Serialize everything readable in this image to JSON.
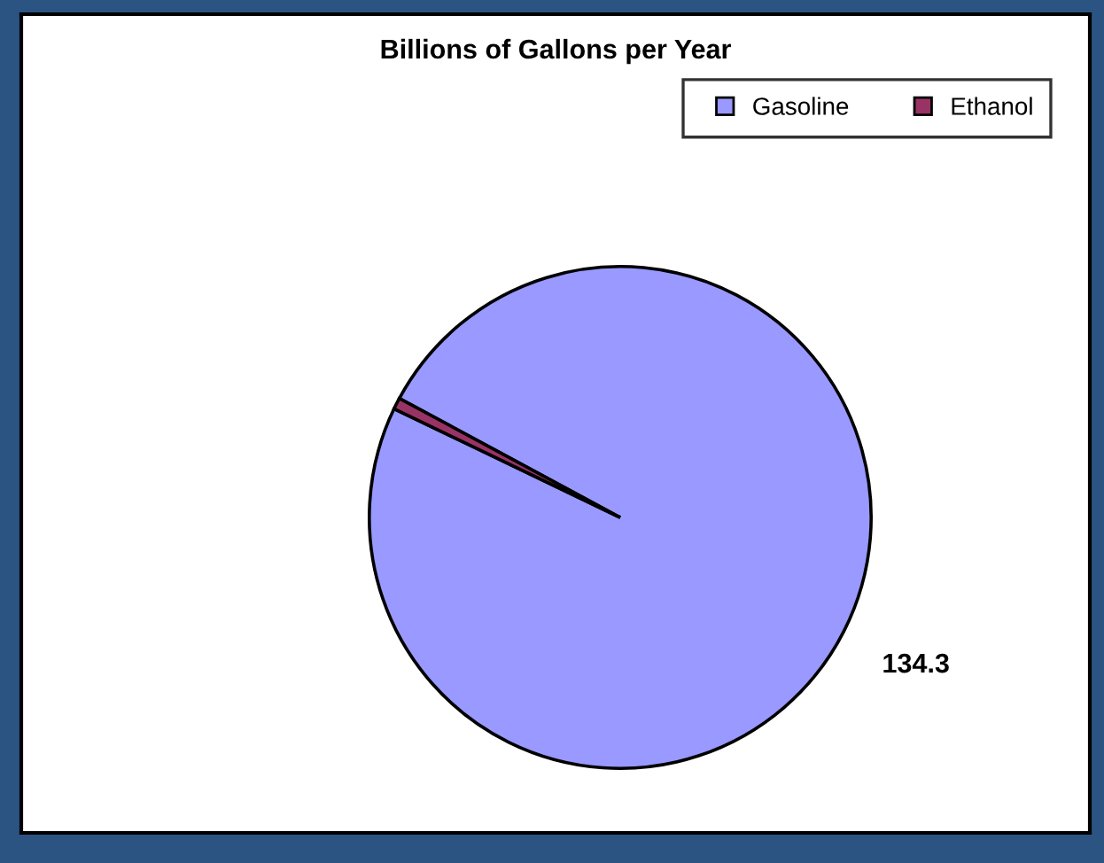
{
  "chart_data": {
    "type": "pie",
    "title": "Billions of Gallons per Year",
    "categories": [
      "Gasoline",
      "Ethanol"
    ],
    "values": [
      134.3,
      1.0
    ],
    "colors": [
      "#9999ff",
      "#993366"
    ],
    "value_labels": [
      "134.3",
      null
    ],
    "legend": "top right"
  }
}
